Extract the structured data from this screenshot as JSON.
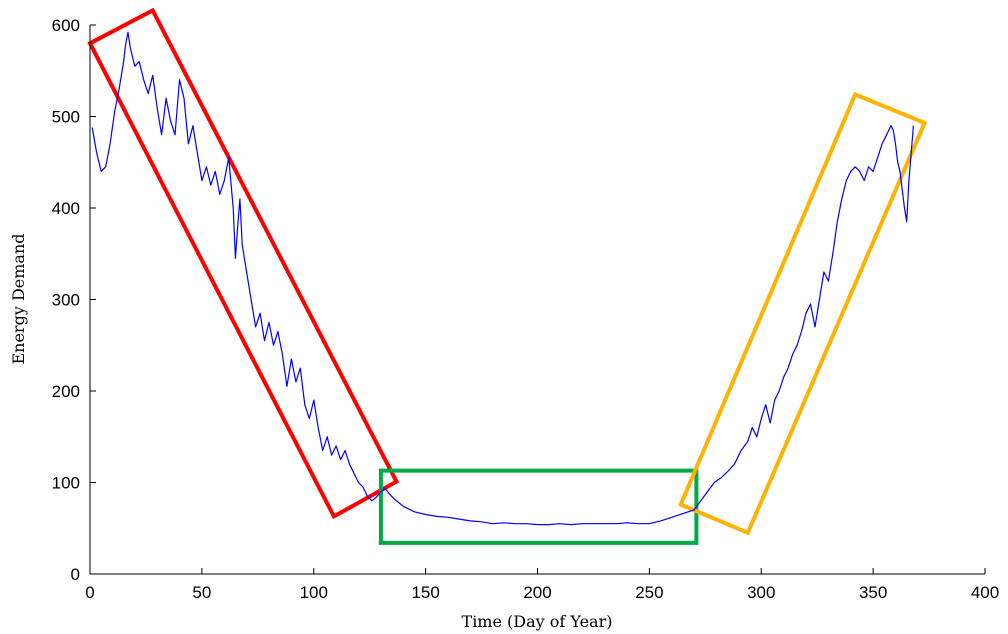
{
  "chart_data": {
    "type": "line",
    "xlabel": "Time (Day of Year)",
    "ylabel": "Energy Demand",
    "xlim": [
      0,
      400
    ],
    "ylim": [
      0,
      600
    ],
    "xticks": [
      0,
      50,
      100,
      150,
      200,
      250,
      300,
      350,
      400
    ],
    "yticks": [
      0,
      100,
      200,
      300,
      400,
      500,
      600
    ],
    "grid": false,
    "series": [
      {
        "color": "#0000ff",
        "points": [
          [
            1,
            488
          ],
          [
            3,
            460
          ],
          [
            5,
            440
          ],
          [
            7,
            445
          ],
          [
            9,
            470
          ],
          [
            11,
            505
          ],
          [
            13,
            530
          ],
          [
            15,
            560
          ],
          [
            16,
            580
          ],
          [
            17,
            592
          ],
          [
            18,
            575
          ],
          [
            20,
            555
          ],
          [
            22,
            560
          ],
          [
            24,
            540
          ],
          [
            26,
            525
          ],
          [
            28,
            545
          ],
          [
            30,
            510
          ],
          [
            32,
            480
          ],
          [
            34,
            520
          ],
          [
            36,
            495
          ],
          [
            38,
            480
          ],
          [
            40,
            540
          ],
          [
            42,
            520
          ],
          [
            44,
            470
          ],
          [
            46,
            490
          ],
          [
            48,
            460
          ],
          [
            50,
            430
          ],
          [
            52,
            445
          ],
          [
            54,
            425
          ],
          [
            56,
            440
          ],
          [
            58,
            415
          ],
          [
            60,
            430
          ],
          [
            62,
            455
          ],
          [
            64,
            400
          ],
          [
            65,
            345
          ],
          [
            66,
            380
          ],
          [
            67,
            410
          ],
          [
            68,
            360
          ],
          [
            70,
            330
          ],
          [
            72,
            300
          ],
          [
            74,
            270
          ],
          [
            76,
            285
          ],
          [
            78,
            255
          ],
          [
            80,
            275
          ],
          [
            82,
            250
          ],
          [
            84,
            265
          ],
          [
            86,
            240
          ],
          [
            88,
            205
          ],
          [
            90,
            235
          ],
          [
            92,
            210
          ],
          [
            94,
            225
          ],
          [
            96,
            185
          ],
          [
            98,
            170
          ],
          [
            100,
            190
          ],
          [
            102,
            160
          ],
          [
            104,
            135
          ],
          [
            106,
            150
          ],
          [
            108,
            130
          ],
          [
            110,
            140
          ],
          [
            112,
            125
          ],
          [
            114,
            135
          ],
          [
            116,
            120
          ],
          [
            118,
            110
          ],
          [
            120,
            100
          ],
          [
            122,
            95
          ],
          [
            124,
            85
          ],
          [
            126,
            80
          ],
          [
            128,
            84
          ],
          [
            130,
            90
          ],
          [
            132,
            93
          ],
          [
            134,
            87
          ],
          [
            136,
            82
          ],
          [
            140,
            74
          ],
          [
            145,
            68
          ],
          [
            150,
            65
          ],
          [
            155,
            63
          ],
          [
            160,
            62
          ],
          [
            165,
            60
          ],
          [
            170,
            58
          ],
          [
            175,
            57
          ],
          [
            180,
            55
          ],
          [
            185,
            56
          ],
          [
            190,
            55
          ],
          [
            195,
            55
          ],
          [
            200,
            54
          ],
          [
            205,
            54
          ],
          [
            210,
            55
          ],
          [
            215,
            54
          ],
          [
            220,
            55
          ],
          [
            225,
            55
          ],
          [
            230,
            55
          ],
          [
            235,
            55
          ],
          [
            240,
            56
          ],
          [
            245,
            55
          ],
          [
            250,
            55
          ],
          [
            255,
            58
          ],
          [
            260,
            62
          ],
          [
            265,
            66
          ],
          [
            270,
            70
          ],
          [
            273,
            80
          ],
          [
            276,
            90
          ],
          [
            279,
            100
          ],
          [
            282,
            105
          ],
          [
            285,
            112
          ],
          [
            288,
            120
          ],
          [
            291,
            135
          ],
          [
            294,
            145
          ],
          [
            296,
            160
          ],
          [
            298,
            150
          ],
          [
            300,
            170
          ],
          [
            302,
            185
          ],
          [
            304,
            165
          ],
          [
            306,
            190
          ],
          [
            308,
            200
          ],
          [
            310,
            215
          ],
          [
            312,
            225
          ],
          [
            314,
            240
          ],
          [
            316,
            250
          ],
          [
            318,
            265
          ],
          [
            320,
            285
          ],
          [
            322,
            295
          ],
          [
            324,
            270
          ],
          [
            326,
            300
          ],
          [
            328,
            330
          ],
          [
            330,
            320
          ],
          [
            332,
            350
          ],
          [
            334,
            385
          ],
          [
            336,
            410
          ],
          [
            338,
            430
          ],
          [
            340,
            440
          ],
          [
            342,
            445
          ],
          [
            344,
            440
          ],
          [
            346,
            430
          ],
          [
            348,
            445
          ],
          [
            350,
            440
          ],
          [
            352,
            455
          ],
          [
            354,
            470
          ],
          [
            356,
            480
          ],
          [
            358,
            490
          ],
          [
            359,
            485
          ],
          [
            360,
            470
          ],
          [
            361,
            450
          ],
          [
            362,
            440
          ],
          [
            363,
            420
          ],
          [
            364,
            400
          ],
          [
            365,
            385
          ],
          [
            366,
            430
          ],
          [
            367,
            460
          ],
          [
            368,
            490
          ]
        ]
      }
    ],
    "annotations": [
      {
        "shape": "rectangle",
        "color": "#ff0000",
        "corners": [
          [
            0,
            580
          ],
          [
            28,
            616
          ],
          [
            137,
            101
          ],
          [
            109,
            63
          ]
        ]
      },
      {
        "shape": "rectangle",
        "color": "#00aa44",
        "corners": [
          [
            130,
            113
          ],
          [
            271,
            113
          ],
          [
            271,
            34
          ],
          [
            130,
            34
          ]
        ]
      },
      {
        "shape": "rectangle",
        "color": "#ffb300",
        "corners": [
          [
            264,
            76
          ],
          [
            294,
            45
          ],
          [
            373,
            493
          ],
          [
            342,
            524
          ]
        ]
      }
    ]
  }
}
